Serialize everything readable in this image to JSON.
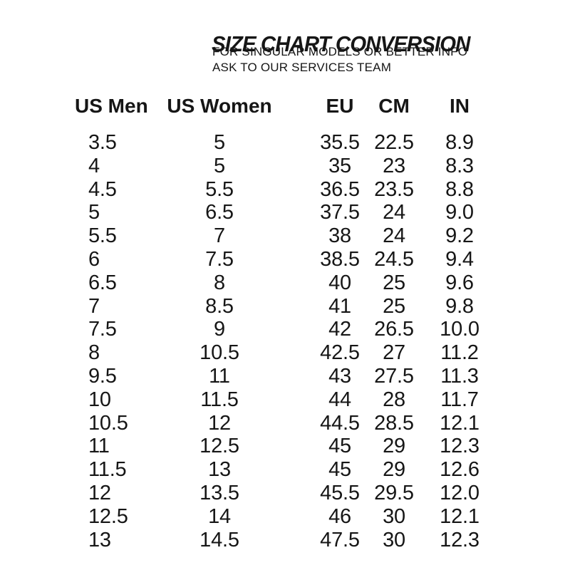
{
  "header": {
    "title": "SIZE CHART CONVERSION",
    "subtitle_line1": "FOR SINGULAR MODELS OR BETTER INFO",
    "subtitle_line2": "ASK TO OUR SERVICES TEAM"
  },
  "colors": {
    "text": "#161616",
    "background": "#ffffff"
  },
  "chart_data": {
    "type": "table",
    "title": "SIZE CHART CONVERSION",
    "columns": [
      "US Men",
      "US Women",
      "EU",
      "CM",
      "IN"
    ],
    "rows": [
      [
        "3.5",
        "5",
        "35.5",
        "22.5",
        "8.9"
      ],
      [
        "4",
        "5",
        "35",
        "23",
        "8.3"
      ],
      [
        "4.5",
        "5.5",
        "36.5",
        "23.5",
        "8.8"
      ],
      [
        "5",
        "6.5",
        "37.5",
        "24",
        "9.0"
      ],
      [
        "5.5",
        "7",
        "38",
        "24",
        "9.2"
      ],
      [
        "6",
        "7.5",
        "38.5",
        "24.5",
        "9.4"
      ],
      [
        "6.5",
        "8",
        "40",
        "25",
        "9.6"
      ],
      [
        "7",
        "8.5",
        "41",
        "25",
        "9.8"
      ],
      [
        "7.5",
        "9",
        "42",
        "26.5",
        "10.0"
      ],
      [
        "8",
        "10.5",
        "42.5",
        "27",
        "11.2"
      ],
      [
        "9.5",
        "11",
        "43",
        "27.5",
        "11.3"
      ],
      [
        "10",
        "11.5",
        "44",
        "28",
        "11.7"
      ],
      [
        "10.5",
        "12",
        "44.5",
        "28.5",
        "12.1"
      ],
      [
        "11",
        "12.5",
        "45",
        "29",
        "12.3"
      ],
      [
        "11.5",
        "13",
        "45",
        "29",
        "12.6"
      ],
      [
        "12",
        "13.5",
        "45.5",
        "29.5",
        "12.0"
      ],
      [
        "12.5",
        "14",
        "46",
        "30",
        "12.1"
      ],
      [
        "13",
        "14.5",
        "47.5",
        "30",
        "12.3"
      ]
    ]
  }
}
